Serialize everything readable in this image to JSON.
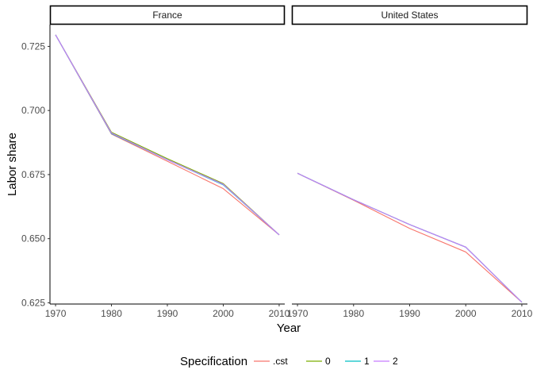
{
  "chart_data": {
    "type": "line",
    "facets": [
      "France",
      "United States"
    ],
    "xlabel": "Year",
    "ylabel": "Labor share",
    "x_ticks": [
      1970,
      1980,
      1990,
      2000,
      2010
    ],
    "y_ticks": [
      0.625,
      0.65,
      0.675,
      0.7,
      0.725
    ],
    "y_tick_labels": [
      "0.625",
      "0.650",
      "0.675",
      "0.700",
      "0.725"
    ],
    "xlim": [
      1969,
      2011
    ],
    "ylim": [
      0.6245,
      0.7335
    ],
    "legend": {
      "title": "Specification",
      "position": "bottom"
    },
    "series": [
      {
        "name": ".cst",
        "color": "#F8766D",
        "values": {
          "France": [
            [
              1970,
              0.7295
            ],
            [
              1980,
              0.6908
            ],
            [
              1990,
              0.6802
            ],
            [
              2000,
              0.6695
            ],
            [
              2010,
              0.6515
            ]
          ],
          "United States": [
            [
              1970,
              0.6755
            ],
            [
              1980,
              0.665
            ],
            [
              1990,
              0.654
            ],
            [
              2000,
              0.6448
            ],
            [
              2010,
              0.6252
            ]
          ]
        }
      },
      {
        "name": "0",
        "color": "#7CAE00",
        "values": {
          "France": [
            [
              1970,
              0.7295
            ],
            [
              1980,
              0.6915
            ],
            [
              1990,
              0.6812
            ],
            [
              2000,
              0.6715
            ],
            [
              2010,
              0.6515
            ]
          ],
          "United States": [
            [
              1970,
              0.6755
            ],
            [
              1980,
              0.6652
            ],
            [
              1990,
              0.6555
            ],
            [
              2000,
              0.6467
            ],
            [
              2010,
              0.6252
            ]
          ]
        }
      },
      {
        "name": "1",
        "color": "#00BFC4",
        "values": {
          "France": [
            [
              1970,
              0.7295
            ],
            [
              1980,
              0.691
            ],
            [
              1990,
              0.6808
            ],
            [
              2000,
              0.671
            ],
            [
              2010,
              0.6515
            ]
          ],
          "United States": [
            [
              1970,
              0.6755
            ],
            [
              1980,
              0.6652
            ],
            [
              1990,
              0.6555
            ],
            [
              2000,
              0.6467
            ],
            [
              2010,
              0.6252
            ]
          ]
        }
      },
      {
        "name": "2",
        "color": "#C77CFF",
        "values": {
          "France": [
            [
              1970,
              0.7295
            ],
            [
              1980,
              0.6912
            ],
            [
              1990,
              0.6808
            ],
            [
              2000,
              0.6712
            ],
            [
              2010,
              0.6515
            ]
          ],
          "United States": [
            [
              1970,
              0.6755
            ],
            [
              1980,
              0.6652
            ],
            [
              1990,
              0.6555
            ],
            [
              2000,
              0.6467
            ],
            [
              2010,
              0.6252
            ]
          ]
        }
      }
    ]
  }
}
